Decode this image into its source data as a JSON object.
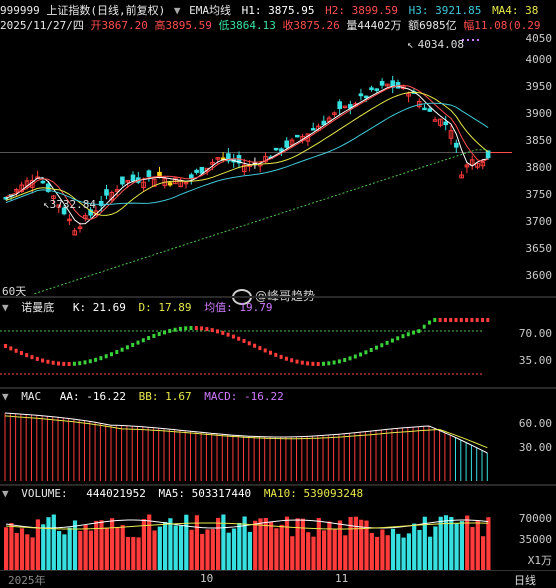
{
  "header": {
    "line1": {
      "code_name": "999999 上证指数(日线,前复权)",
      "ema_label": "EMA均线",
      "h1": "H1: 3875.95",
      "h2": "H2: 3899.59",
      "h3": "H3: 3921.85",
      "ma4": "MA4: 38"
    },
    "line2": {
      "date": "2025/11/27/四",
      "open": "开3867.20",
      "high": "高3895.59",
      "low": "低3864.13",
      "close": "收3875.26",
      "volume": "量44402万",
      "amount": "额6985亿",
      "amp": "幅11.08(0.29"
    }
  },
  "main_chart": {
    "high_label": "4034.08",
    "low_label": "3732.84",
    "ma_label": "60天",
    "y_ticks": [
      "4050",
      "4000",
      "3950",
      "3900",
      "3850",
      "3800",
      "3750",
      "3700",
      "3650",
      "3600"
    ],
    "current_price_marker": "3875.26"
  },
  "watermark": "@峰哥趋势",
  "kd_panel": {
    "name": "诺曼底",
    "k": "K: 21.69",
    "d": "D: 17.89",
    "avg": "均值: 19.79",
    "y_ticks": [
      "70.00",
      "35.00"
    ]
  },
  "macd_panel": {
    "name": "MAC",
    "aa": "AA: -16.22",
    "bb": "BB: 1.67",
    "macd": "MACD: -16.22",
    "y_ticks": [
      "60.00",
      "30.00"
    ]
  },
  "volume_panel": {
    "name": "VOLUME:",
    "volume": "444021952",
    "ma5": "MA5: 503317440",
    "ma10": "MA10: 539093248",
    "y_ticks": [
      "70000",
      "35000"
    ],
    "unit": "X1万"
  },
  "time_axis": {
    "labels": [
      "2025年",
      "10",
      "11"
    ],
    "period_button": "日线"
  },
  "colors": {
    "up": "#ff3b3b",
    "down": "#37e0e0",
    "highlight": "#ffd21a",
    "white_candle": "#ffffff",
    "ma_yellow": "#e8e84a",
    "ma_red": "#ff4d4d",
    "ma_cyan": "#40c8d8",
    "ma_green": "#4ec64e",
    "purple": "#d07bff"
  }
}
